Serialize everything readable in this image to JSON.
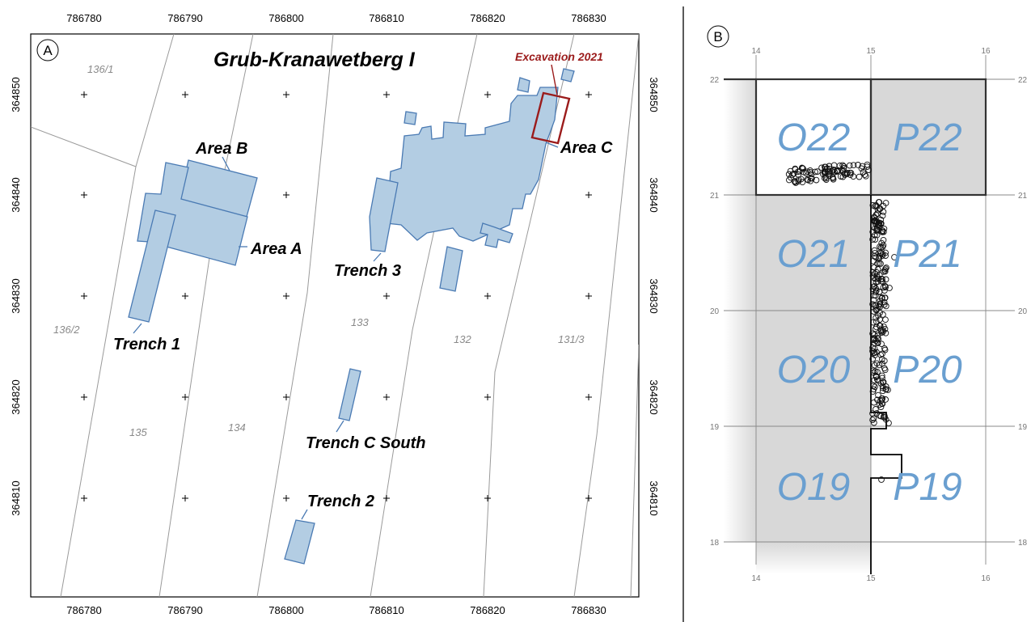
{
  "colors": {
    "feature_fill": "#b3cde3",
    "feature_stroke": "#4a7ab3",
    "excavation": "#9b1b1b",
    "parcel_line": "#9a9a9a",
    "parcel_label": "#8a8a8a",
    "grid_cell_fill": "#d8d8d8",
    "grid_label": "#6a9fd0"
  },
  "panel_a": {
    "letter": "A",
    "title": "Grub-Kranawetberg I",
    "x_ticks": [
      "786780",
      "786790",
      "786800",
      "786810",
      "786820",
      "786830"
    ],
    "y_ticks": [
      "364850",
      "364840",
      "364830",
      "364820",
      "364810"
    ],
    "parcels": [
      "136/1",
      "136/2",
      "135",
      "134",
      "133",
      "132",
      "131/3"
    ],
    "features": {
      "area_b": "Area B",
      "area_a": "Area A",
      "trench_1": "Trench 1",
      "trench_3": "Trench 3",
      "area_c": "Area C",
      "trench_c_south": "Trench C South",
      "trench_2": "Trench 2"
    },
    "excavation_label": "Excavation 2021"
  },
  "panel_b": {
    "letter": "B",
    "x_ticks": [
      "14",
      "15",
      "16"
    ],
    "y_ticks": [
      "22",
      "21",
      "20",
      "19",
      "18"
    ],
    "cells": [
      "O22",
      "P22",
      "O21",
      "P21",
      "O20",
      "P20",
      "O19",
      "P19"
    ]
  }
}
